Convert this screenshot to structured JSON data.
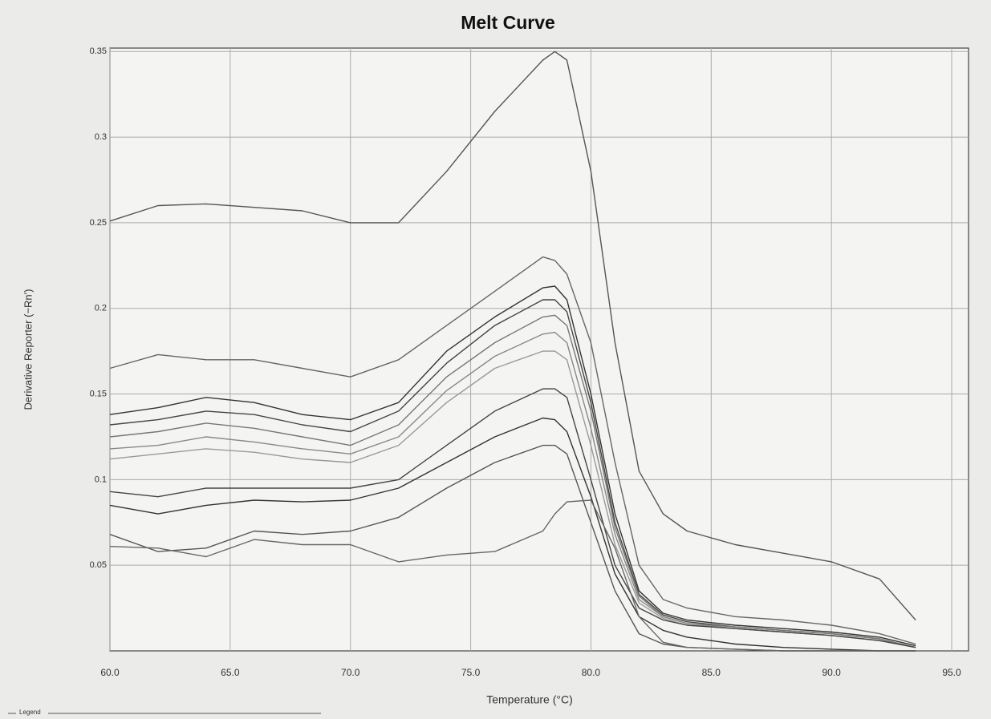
{
  "chart_data": {
    "type": "line",
    "title": "Melt Curve",
    "x_label": "Temperature (°C)",
    "y_label": "Derivative Reporter (−Rn')",
    "legend_label": "Legend",
    "xlim": [
      60,
      95.7
    ],
    "ylim": [
      0,
      0.352
    ],
    "xticks": [
      {
        "value": 60,
        "label": "60.0"
      },
      {
        "value": 65,
        "label": "65.0"
      },
      {
        "value": 70,
        "label": "70.0"
      },
      {
        "value": 75,
        "label": "75.0"
      },
      {
        "value": 80,
        "label": "80.0"
      },
      {
        "value": 85,
        "label": "85.0"
      },
      {
        "value": 90,
        "label": "90.0"
      },
      {
        "value": 95,
        "label": "95.0"
      }
    ],
    "yticks": [
      0.05,
      0.1,
      0.15,
      0.2,
      0.25,
      0.3,
      0.35
    ],
    "grid": true,
    "x": [
      60,
      62,
      64,
      66,
      68,
      70,
      72,
      74,
      76,
      78,
      78.5,
      79,
      80,
      81,
      82,
      83,
      84,
      86,
      88,
      90,
      92,
      93.5
    ],
    "series": [
      {
        "color": "#555555",
        "values": [
          0.251,
          0.26,
          0.261,
          0.259,
          0.257,
          0.25,
          0.25,
          0.28,
          0.315,
          0.345,
          0.35,
          0.345,
          0.28,
          0.18,
          0.105,
          0.08,
          0.07,
          0.062,
          0.057,
          0.052,
          0.042,
          0.018
        ]
      },
      {
        "color": "#666666",
        "values": [
          0.165,
          0.173,
          0.17,
          0.17,
          0.165,
          0.16,
          0.17,
          0.19,
          0.21,
          0.23,
          0.228,
          0.22,
          0.18,
          0.11,
          0.05,
          0.03,
          0.025,
          0.02,
          0.018,
          0.015,
          0.01,
          0.004
        ]
      },
      {
        "color": "#333333",
        "values": [
          0.138,
          0.142,
          0.148,
          0.145,
          0.138,
          0.135,
          0.145,
          0.175,
          0.195,
          0.212,
          0.213,
          0.205,
          0.15,
          0.08,
          0.035,
          0.022,
          0.018,
          0.015,
          0.013,
          0.011,
          0.008,
          0.003
        ]
      },
      {
        "color": "#444444",
        "values": [
          0.132,
          0.135,
          0.14,
          0.138,
          0.132,
          0.128,
          0.14,
          0.168,
          0.19,
          0.205,
          0.205,
          0.198,
          0.145,
          0.075,
          0.033,
          0.021,
          0.017,
          0.014,
          0.012,
          0.01,
          0.007,
          0.002
        ]
      },
      {
        "color": "#777777",
        "values": [
          0.125,
          0.128,
          0.133,
          0.13,
          0.125,
          0.12,
          0.132,
          0.16,
          0.18,
          0.195,
          0.196,
          0.19,
          0.14,
          0.072,
          0.032,
          0.02,
          0.016,
          0.014,
          0.012,
          0.01,
          0.007,
          0.002
        ]
      },
      {
        "color": "#888888",
        "values": [
          0.118,
          0.12,
          0.125,
          0.122,
          0.118,
          0.115,
          0.125,
          0.152,
          0.172,
          0.185,
          0.186,
          0.18,
          0.13,
          0.068,
          0.03,
          0.02,
          0.016,
          0.013,
          0.011,
          0.009,
          0.006,
          0.002
        ]
      },
      {
        "color": "#999999",
        "values": [
          0.112,
          0.115,
          0.118,
          0.116,
          0.112,
          0.11,
          0.12,
          0.145,
          0.165,
          0.175,
          0.175,
          0.17,
          0.12,
          0.062,
          0.028,
          0.019,
          0.015,
          0.013,
          0.011,
          0.009,
          0.006,
          0.002
        ]
      },
      {
        "color": "#444444",
        "values": [
          0.093,
          0.09,
          0.095,
          0.095,
          0.095,
          0.095,
          0.1,
          0.12,
          0.14,
          0.153,
          0.153,
          0.148,
          0.1,
          0.05,
          0.025,
          0.018,
          0.015,
          0.013,
          0.011,
          0.009,
          0.006,
          0.002
        ]
      },
      {
        "color": "#333333",
        "values": [
          0.085,
          0.08,
          0.085,
          0.088,
          0.087,
          0.088,
          0.095,
          0.11,
          0.125,
          0.136,
          0.135,
          0.128,
          0.09,
          0.045,
          0.02,
          0.012,
          0.008,
          0.004,
          0.002,
          0.001,
          0,
          0
        ]
      },
      {
        "color": "#555555",
        "values": [
          0.068,
          0.058,
          0.06,
          0.07,
          0.068,
          0.07,
          0.078,
          0.095,
          0.11,
          0.12,
          0.12,
          0.115,
          0.075,
          0.035,
          0.01,
          0.004,
          0.002,
          0.001,
          0,
          0,
          0,
          0
        ]
      },
      {
        "color": "#666666",
        "values": [
          0.061,
          0.06,
          0.055,
          0.065,
          0.062,
          0.062,
          0.052,
          0.056,
          0.058,
          0.07,
          0.08,
          0.087,
          0.088,
          0.06,
          0.02,
          0.005,
          0.002,
          0.001,
          0,
          0,
          0,
          0
        ]
      }
    ]
  }
}
